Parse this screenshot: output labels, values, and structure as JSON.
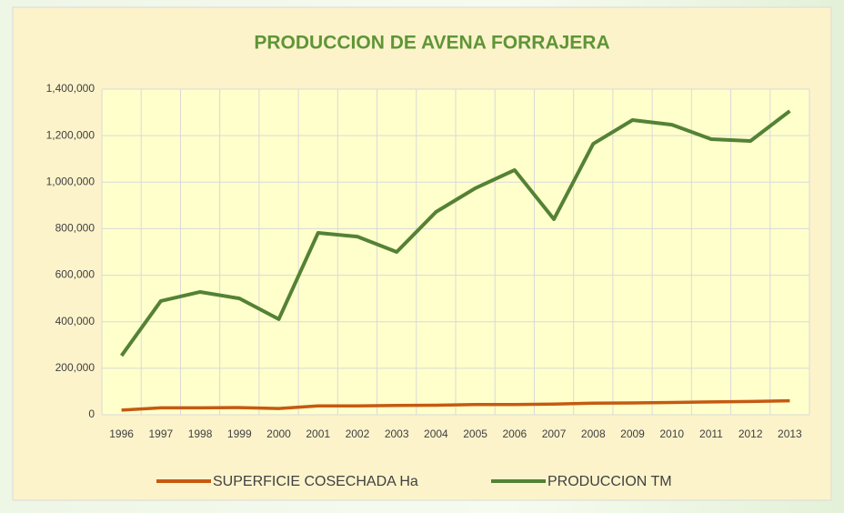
{
  "chart_data": {
    "type": "line",
    "title": "PRODUCCION DE AVENA FORRAJERA",
    "categories": [
      "1996",
      "1997",
      "1998",
      "1999",
      "2000",
      "2001",
      "2002",
      "2003",
      "2004",
      "2005",
      "2006",
      "2007",
      "2008",
      "2009",
      "2010",
      "2011",
      "2012",
      "2013"
    ],
    "series": [
      {
        "name": "SUPERFICIE COSECHADA Ha",
        "color": "#c55a11",
        "values": [
          20000,
          30000,
          30000,
          31000,
          27000,
          38000,
          38000,
          40000,
          41000,
          44000,
          44000,
          46000,
          50000,
          51000,
          53000,
          55000,
          57000,
          60000
        ]
      },
      {
        "name": "PRODUCCION  TM",
        "color": "#548235",
        "values": [
          254000,
          489000,
          528000,
          500000,
          411000,
          782000,
          766000,
          700000,
          872000,
          974000,
          1052000,
          841000,
          1165000,
          1267000,
          1247000,
          1185000,
          1177000,
          1306000
        ]
      }
    ],
    "ylim": [
      0,
      1400000
    ],
    "yticks": [
      0,
      {
        "value": 200000,
        "label": "200,000"
      },
      {
        "value": 400000,
        "label": "400,000"
      },
      {
        "value": 600000,
        "label": "600,000"
      },
      {
        "value": 800000,
        "label": "800,000"
      },
      {
        "value": 1000000,
        "label": "1,000,000"
      },
      {
        "value": 1200000,
        "label": "1,200,000"
      },
      {
        "value": 1400000,
        "label": "1,400,000"
      }
    ],
    "grid": true,
    "legend": "bottom"
  }
}
